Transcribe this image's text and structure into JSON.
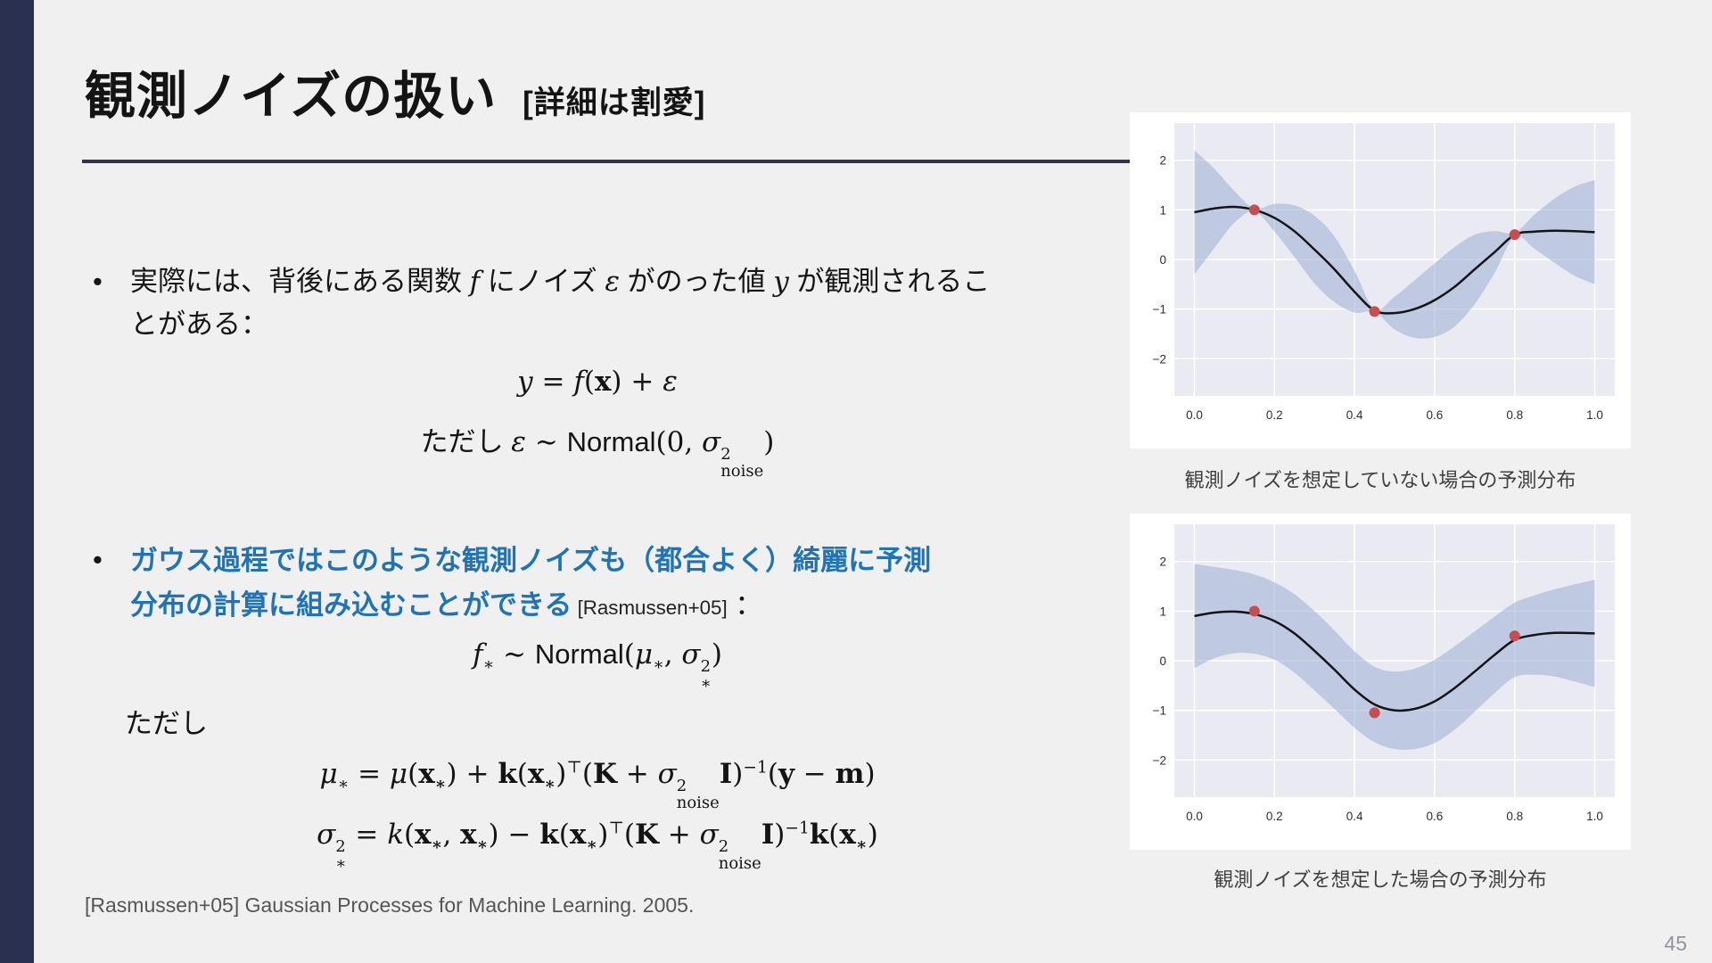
{
  "theme": {
    "slide_bg": "#f0f0f1",
    "navy": "#2a3050",
    "accent_blue": "#2173b4",
    "text": "#161616",
    "muted": "#555555",
    "page_num": "#8f979e"
  },
  "slide": {
    "title": "観測ノイズの扱い",
    "title_suffix": "[詳細は割愛]",
    "bullet_glyph": "•",
    "tadashi": "ただし",
    "footer": "[Rasmussen+05] Gaussian Processes for Machine Learning. 2005.",
    "page_number": "45"
  },
  "bullets": {
    "b1_parts": [
      {
        "s": "実際には、背後にある関数 ",
        "c": "jp"
      },
      {
        "s": "f",
        "c": "it"
      },
      {
        "s": " にノイズ ",
        "c": "jp"
      },
      {
        "s": "ε",
        "c": "it"
      },
      {
        "s": " がのった値 ",
        "c": "jp"
      },
      {
        "s": "y",
        "c": "it"
      },
      {
        "s": " が観測されることがある：",
        "c": "jp"
      }
    ],
    "b2_parts": [
      {
        "s": "ガウス過程ではこのような観測ノイズも（都合よく）綺麗に予測分布の計算に組み込むことができる",
        "c": "blue"
      },
      {
        "s": " [Rasmussen+05]",
        "c": "cite"
      },
      {
        "s": " ：",
        "c": "jp"
      }
    ]
  },
  "formulas": {
    "f1": [
      {
        "s": "y",
        "c": "it"
      },
      {
        "s": " = ",
        "c": "rm"
      },
      {
        "s": "f",
        "c": "it"
      },
      {
        "s": "(",
        "c": "rm"
      },
      {
        "s": "x",
        "c": "bf"
      },
      {
        "s": ") + ",
        "c": "rm"
      },
      {
        "s": "ε",
        "c": "it"
      }
    ],
    "f2": [
      {
        "s": "ただし ",
        "c": "jp"
      },
      {
        "s": "ε",
        "c": "it"
      },
      {
        "s": " ∼ ",
        "c": "rm"
      },
      {
        "s": "Normal",
        "c": "fn"
      },
      {
        "s": "(0, ",
        "c": "rm"
      },
      {
        "s": "σ",
        "c": "it",
        "sup": "2",
        "sub": "noise"
      },
      {
        "s": ")",
        "c": "rm"
      }
    ],
    "f3": [
      {
        "s": "f",
        "c": "it",
        "sub": "∗"
      },
      {
        "s": " ∼ ",
        "c": "rm"
      },
      {
        "s": "Normal",
        "c": "fn"
      },
      {
        "s": "(",
        "c": "rm"
      },
      {
        "s": "μ",
        "c": "it",
        "sub": "∗"
      },
      {
        "s": ", ",
        "c": "rm"
      },
      {
        "s": "σ",
        "c": "it",
        "sup": "2",
        "sub": "∗"
      },
      {
        "s": ")",
        "c": "rm"
      }
    ],
    "f4": [
      {
        "s": "μ",
        "c": "it",
        "sub": "∗"
      },
      {
        "s": " = ",
        "c": "rm"
      },
      {
        "s": "μ",
        "c": "it"
      },
      {
        "s": "(",
        "c": "rm"
      },
      {
        "s": "x",
        "c": "bf",
        "sub": "∗"
      },
      {
        "s": ") + ",
        "c": "rm"
      },
      {
        "s": "k",
        "c": "bf"
      },
      {
        "s": "(",
        "c": "rm"
      },
      {
        "s": "x",
        "c": "bf",
        "sub": "∗"
      },
      {
        "s": ")",
        "c": "rm",
        "sup": "⊤"
      },
      {
        "s": "(",
        "c": "rm"
      },
      {
        "s": "K",
        "c": "bf"
      },
      {
        "s": " + ",
        "c": "rm"
      },
      {
        "s": "σ",
        "c": "it",
        "sup": "2",
        "sub": "noise"
      },
      {
        "s": "I",
        "c": "bf"
      },
      {
        "s": ")",
        "c": "rm",
        "sup": "−1"
      },
      {
        "s": "(",
        "c": "rm"
      },
      {
        "s": "y",
        "c": "bf"
      },
      {
        "s": " − ",
        "c": "rm"
      },
      {
        "s": "m",
        "c": "bf"
      },
      {
        "s": ")",
        "c": "rm"
      }
    ],
    "f5": [
      {
        "s": "σ",
        "c": "it",
        "sup": "2",
        "sub": "∗"
      },
      {
        "s": " = ",
        "c": "rm"
      },
      {
        "s": "k",
        "c": "it"
      },
      {
        "s": "(",
        "c": "rm"
      },
      {
        "s": "x",
        "c": "bf",
        "sub": "∗"
      },
      {
        "s": ", ",
        "c": "rm"
      },
      {
        "s": "x",
        "c": "bf",
        "sub": "∗"
      },
      {
        "s": ") − ",
        "c": "rm"
      },
      {
        "s": "k",
        "c": "bf"
      },
      {
        "s": "(",
        "c": "rm"
      },
      {
        "s": "x",
        "c": "bf",
        "sub": "∗"
      },
      {
        "s": ")",
        "c": "rm",
        "sup": "⊤"
      },
      {
        "s": "(",
        "c": "rm"
      },
      {
        "s": "K",
        "c": "bf"
      },
      {
        "s": " + ",
        "c": "rm"
      },
      {
        "s": "σ",
        "c": "it",
        "sup": "2",
        "sub": "noise"
      },
      {
        "s": "I",
        "c": "bf"
      },
      {
        "s": ")",
        "c": "rm",
        "sup": "−1"
      },
      {
        "s": "k",
        "c": "bf"
      },
      {
        "s": "(",
        "c": "rm"
      },
      {
        "s": "x",
        "c": "bf",
        "sub": "∗"
      },
      {
        "s": ")",
        "c": "rm"
      }
    ]
  },
  "chart_data": [
    {
      "type": "line",
      "caption": "観測ノイズを想定していない場合の予測分布",
      "xlim": [
        -0.05,
        1.05
      ],
      "ylim": [
        -2.75,
        2.75
      ],
      "x_ticks": [
        0,
        0.2,
        0.4,
        0.6,
        0.8,
        1.0
      ],
      "x_tick_labels": [
        "0.0",
        "0.2",
        "0.4",
        "0.6",
        "0.8",
        "1.0"
      ],
      "y_ticks": [
        -2,
        -1,
        0,
        1,
        2
      ],
      "y_tick_labels": [
        "−2",
        "−1",
        "0",
        "1",
        "2"
      ],
      "grid": true,
      "x": [
        0,
        0.05,
        0.1,
        0.15,
        0.2,
        0.25,
        0.3,
        0.35,
        0.4,
        0.45,
        0.5,
        0.55,
        0.6,
        0.65,
        0.7,
        0.75,
        0.8,
        0.85,
        0.9,
        0.95,
        1.0
      ],
      "series": [
        {
          "name": "predictive mean",
          "values": [
            0.95,
            1.03,
            1.06,
            1.0,
            0.84,
            0.57,
            0.2,
            -0.2,
            -0.65,
            -1.03,
            -1.08,
            -1.0,
            -0.82,
            -0.55,
            -0.2,
            0.15,
            0.5,
            0.56,
            0.58,
            0.57,
            0.55
          ]
        },
        {
          "name": "upper band",
          "values": [
            2.2,
            1.83,
            1.38,
            1.03,
            1.12,
            1.09,
            0.88,
            0.46,
            -0.23,
            -1.0,
            -0.75,
            -0.42,
            -0.08,
            0.25,
            0.5,
            0.57,
            0.54,
            0.91,
            1.23,
            1.47,
            1.6
          ]
        },
        {
          "name": "lower band",
          "values": [
            -0.3,
            0.23,
            0.74,
            0.97,
            0.56,
            0.05,
            -0.48,
            -0.86,
            -1.07,
            -1.06,
            -1.41,
            -1.58,
            -1.56,
            -1.35,
            -0.9,
            -0.27,
            0.46,
            0.21,
            -0.07,
            -0.33,
            -0.5
          ]
        }
      ],
      "points": {
        "name": "observations",
        "x": [
          0.15,
          0.45,
          0.8
        ],
        "y": [
          1.0,
          -1.05,
          0.5
        ]
      },
      "colors": {
        "bg": "#eaeaf2",
        "grid": "#ffffff",
        "band": "#93a8cf",
        "line": "#141414",
        "points": "#c44e52"
      }
    },
    {
      "type": "line",
      "caption": "観測ノイズを想定した場合の予測分布",
      "xlim": [
        -0.05,
        1.05
      ],
      "ylim": [
        -2.75,
        2.75
      ],
      "x_ticks": [
        0,
        0.2,
        0.4,
        0.6,
        0.8,
        1.0
      ],
      "x_tick_labels": [
        "0.0",
        "0.2",
        "0.4",
        "0.6",
        "0.8",
        "1.0"
      ],
      "y_ticks": [
        -2,
        -1,
        0,
        1,
        2
      ],
      "y_tick_labels": [
        "−2",
        "−1",
        "0",
        "1",
        "2"
      ],
      "grid": true,
      "x": [
        0,
        0.05,
        0.1,
        0.15,
        0.2,
        0.25,
        0.3,
        0.35,
        0.4,
        0.45,
        0.5,
        0.55,
        0.6,
        0.65,
        0.7,
        0.75,
        0.8,
        0.85,
        0.9,
        0.95,
        1.0
      ],
      "series": [
        {
          "name": "predictive mean",
          "values": [
            0.9,
            0.97,
            0.99,
            0.94,
            0.8,
            0.55,
            0.2,
            -0.18,
            -0.58,
            -0.88,
            -1.0,
            -0.97,
            -0.82,
            -0.55,
            -0.22,
            0.12,
            0.42,
            0.52,
            0.56,
            0.56,
            0.55
          ]
        },
        {
          "name": "upper band",
          "values": [
            1.95,
            1.89,
            1.83,
            1.74,
            1.58,
            1.34,
            1.0,
            0.61,
            0.19,
            -0.12,
            -0.22,
            -0.16,
            0.02,
            0.29,
            0.59,
            0.89,
            1.17,
            1.32,
            1.44,
            1.54,
            1.63
          ]
        },
        {
          "name": "lower band",
          "values": [
            -0.15,
            0.05,
            0.15,
            0.14,
            0.02,
            -0.24,
            -0.6,
            -0.97,
            -1.35,
            -1.64,
            -1.78,
            -1.78,
            -1.66,
            -1.39,
            -1.03,
            -0.65,
            -0.33,
            -0.28,
            -0.32,
            -0.42,
            -0.53
          ]
        }
      ],
      "points": {
        "name": "observations",
        "x": [
          0.15,
          0.45,
          0.8
        ],
        "y": [
          1.0,
          -1.05,
          0.5
        ]
      },
      "colors": {
        "bg": "#eaeaf2",
        "grid": "#ffffff",
        "band": "#93a8cf",
        "line": "#141414",
        "points": "#c44e52"
      }
    }
  ]
}
